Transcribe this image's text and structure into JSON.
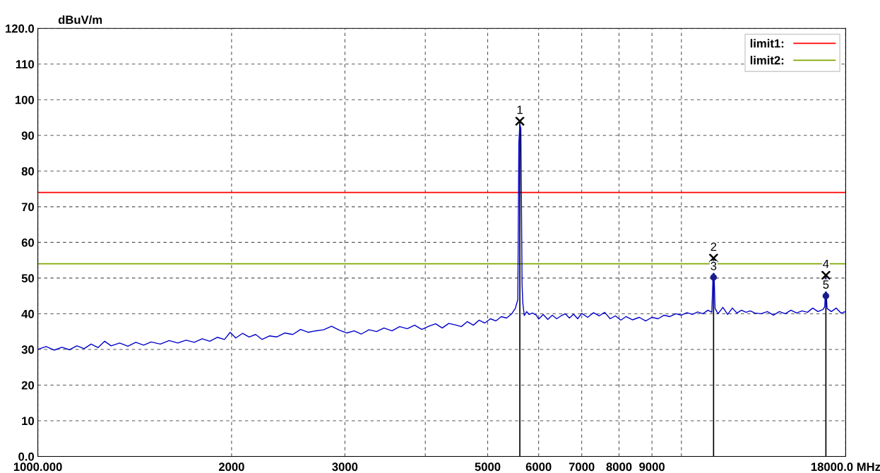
{
  "chart_data": {
    "type": "line",
    "ylabel": "dBuV/m",
    "xlim": [
      1000,
      18000
    ],
    "xticks": [
      {
        "value": 1000,
        "label": "1000.000"
      },
      2000,
      3000,
      {
        "value": 4000,
        "label": null
      },
      5000,
      6000,
      7000,
      8000,
      9000,
      {
        "value": 10000,
        "label": null
      },
      {
        "value": 18000,
        "label": "18000.0 MHz"
      }
    ],
    "ylim": [
      0,
      120
    ],
    "yticks": [
      {
        "value": 0,
        "label": "0.0"
      },
      10,
      20,
      30,
      40,
      50,
      60,
      70,
      80,
      90,
      100,
      110,
      {
        "value": 120,
        "label": "120.0"
      }
    ],
    "log": "x",
    "grid": true,
    "legend": "top right",
    "ref_lines": [
      {
        "axis": "y",
        "value": 74,
        "label": "limit1:",
        "color": "#ff0000"
      },
      {
        "axis": "y",
        "value": 54,
        "label": "limit2:",
        "color": "#7fa600"
      },
      {
        "axis": "x",
        "value": 5610,
        "color": "#000000"
      },
      {
        "axis": "x",
        "value": 11220,
        "color": "#000000"
      },
      {
        "axis": "x",
        "value": 16770,
        "color": "#000000"
      }
    ],
    "annotations": [
      {
        "text": "1",
        "x": 5610,
        "y": 94
      },
      {
        "text": "2",
        "x": 11220,
        "y": 55.6
      },
      {
        "text": "3",
        "x": 11220,
        "y": 50.2
      },
      {
        "text": "4",
        "x": 16770,
        "y": 50.8
      },
      {
        "text": "5",
        "x": 16770,
        "y": 45
      }
    ],
    "series": [
      {
        "color": "#0000cc",
        "marker": "none",
        "x": [
          1000,
          1030,
          1060,
          1090,
          1120,
          1150,
          1180,
          1210,
          1240,
          1270,
          1300,
          1340,
          1380,
          1420,
          1460,
          1500,
          1550,
          1600,
          1650,
          1700,
          1750,
          1800,
          1850,
          1900,
          1950,
          1990,
          2030,
          2080,
          2130,
          2180,
          2230,
          2290,
          2350,
          2420,
          2490,
          2560,
          2630,
          2700,
          2780,
          2860,
          2940,
          3020,
          3100,
          3180,
          3270,
          3360,
          3450,
          3550,
          3650,
          3750,
          3850,
          3950,
          4050,
          4150,
          4250,
          4350,
          4450,
          4550,
          4650,
          4750,
          4850,
          4950,
          5050,
          5150,
          5250,
          5350,
          5450,
          5520,
          5570,
          5590,
          5610,
          5630,
          5640,
          5655,
          5670,
          5700,
          5750,
          5800,
          5870,
          5950,
          6000,
          6100,
          6200,
          6300,
          6400,
          6500,
          6600,
          6700,
          6800,
          6900,
          7000,
          7150,
          7300,
          7450,
          7600,
          7750,
          7900,
          8050,
          8200,
          8400,
          8600,
          8800,
          9000,
          9200,
          9400,
          9600,
          9800,
          10000,
          10200,
          10400,
          10600,
          10800,
          11000,
          11150,
          11200,
          11220,
          11240,
          11280,
          11400,
          11600,
          11800,
          12000,
          12200,
          12400,
          12600,
          12800,
          13000,
          13300,
          13600,
          13900,
          14200,
          14500,
          14800,
          15100,
          15400,
          15700,
          16000,
          16300,
          16600,
          16700,
          16740,
          16770,
          16800,
          16840,
          17100,
          17400,
          17700,
          18000
        ],
        "values": [
          30.0,
          30.8,
          29.8,
          30.6,
          29.9,
          31.0,
          30.2,
          31.5,
          30.5,
          32.3,
          31.0,
          31.8,
          30.9,
          32.0,
          31.2,
          32.1,
          31.5,
          32.5,
          31.8,
          32.6,
          32.0,
          33.0,
          32.3,
          33.4,
          32.8,
          34.8,
          33.2,
          34.5,
          33.5,
          34.2,
          32.8,
          33.8,
          33.5,
          34.6,
          34.2,
          35.6,
          34.8,
          35.2,
          35.5,
          36.5,
          35.4,
          34.6,
          35.2,
          34.3,
          35.5,
          35.0,
          36.0,
          35.2,
          36.4,
          35.8,
          36.8,
          35.6,
          36.5,
          37.2,
          36.0,
          37.3,
          36.9,
          36.4,
          37.8,
          36.8,
          38.2,
          37.4,
          38.6,
          38.0,
          39.2,
          38.8,
          40.0,
          41.5,
          44,
          88,
          93,
          92,
          75,
          48,
          43,
          39.5,
          40.6,
          39.8,
          40.2,
          39.6,
          38.5,
          39.8,
          38.4,
          39.6,
          38.6,
          39.4,
          40.0,
          38.8,
          39.9,
          38.6,
          40.1,
          39.0,
          40.3,
          39.4,
          40.4,
          38.6,
          39.4,
          38.2,
          39.2,
          38.3,
          39.0,
          38.0,
          39.0,
          38.6,
          39.6,
          39.2,
          40.0,
          39.6,
          40.3,
          39.8,
          40.5,
          40.0,
          41.0,
          40.4,
          51,
          55,
          51,
          41.5,
          40.0,
          41.8,
          39.8,
          41.6,
          40.2,
          41.0,
          40.4,
          40.8,
          40.2,
          40.0,
          40.6,
          39.6,
          40.6,
          40.0,
          41.0,
          40.2,
          40.8,
          40.4,
          41.6,
          40.6,
          41.2,
          42,
          46,
          50,
          45,
          41.5,
          40.6,
          41.6,
          40.2,
          40.6
        ]
      },
      {
        "type": "scatter",
        "color": "#000000",
        "marker": "cross",
        "x": [
          5610,
          11220,
          16770
        ],
        "values": [
          94,
          55.6,
          50.8
        ]
      },
      {
        "type": "scatter",
        "color": "#1a1a8c",
        "marker": "circle",
        "x": [
          11220,
          16770
        ],
        "values": [
          50.2,
          45
        ]
      }
    ]
  }
}
